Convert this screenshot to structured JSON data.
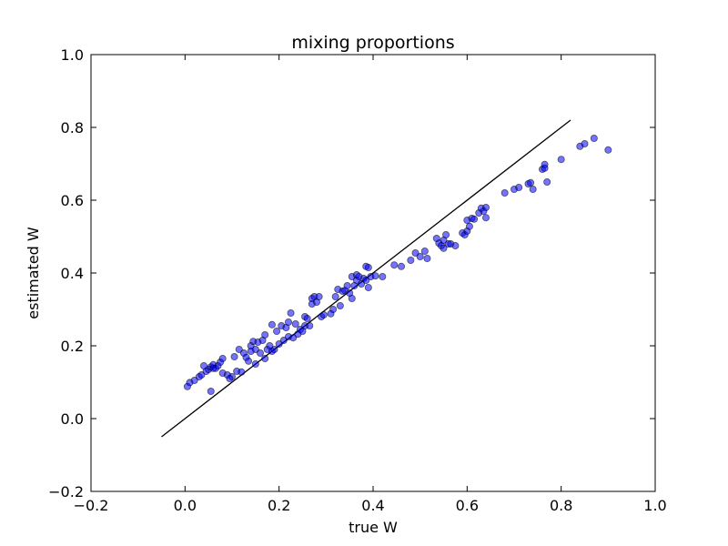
{
  "chart_data": {
    "type": "scatter",
    "title": "mixing proportions",
    "xlabel": "true W",
    "ylabel": "estimated W",
    "xlim": [
      -0.2,
      1.0
    ],
    "ylim": [
      -0.2,
      1.0
    ],
    "xticks": [
      "−0.2",
      "0.0",
      "0.2",
      "0.4",
      "0.6",
      "0.8",
      "1.0"
    ],
    "yticks": [
      "−0.2",
      "0.0",
      "0.2",
      "0.4",
      "0.6",
      "0.8",
      "1.0"
    ],
    "grid": false,
    "colors": {
      "points": "#0000ff",
      "points_alpha": 0.55,
      "edge": "#000000",
      "line": "#000000"
    },
    "reference_line": {
      "x": [
        -0.05,
        0.82
      ],
      "y": [
        -0.05,
        0.82
      ]
    },
    "series": [
      {
        "points": [
          [
            0.005,
            0.088
          ],
          [
            0.01,
            0.099
          ],
          [
            0.02,
            0.105
          ],
          [
            0.03,
            0.115
          ],
          [
            0.035,
            0.12
          ],
          [
            0.04,
            0.145
          ],
          [
            0.045,
            0.13
          ],
          [
            0.05,
            0.135
          ],
          [
            0.055,
            0.142
          ],
          [
            0.06,
            0.148
          ],
          [
            0.065,
            0.138
          ],
          [
            0.07,
            0.145
          ],
          [
            0.075,
            0.155
          ],
          [
            0.08,
            0.165
          ],
          [
            0.055,
            0.075
          ],
          [
            0.06,
            0.138
          ],
          [
            0.08,
            0.125
          ],
          [
            0.09,
            0.12
          ],
          [
            0.1,
            0.115
          ],
          [
            0.095,
            0.11
          ],
          [
            0.105,
            0.17
          ],
          [
            0.11,
            0.13
          ],
          [
            0.115,
            0.19
          ],
          [
            0.12,
            0.128
          ],
          [
            0.125,
            0.18
          ],
          [
            0.13,
            0.168
          ],
          [
            0.135,
            0.158
          ],
          [
            0.14,
            0.185
          ],
          [
            0.14,
            0.2
          ],
          [
            0.145,
            0.212
          ],
          [
            0.15,
            0.15
          ],
          [
            0.15,
            0.19
          ],
          [
            0.155,
            0.21
          ],
          [
            0.16,
            0.18
          ],
          [
            0.165,
            0.215
          ],
          [
            0.17,
            0.165
          ],
          [
            0.17,
            0.23
          ],
          [
            0.175,
            0.19
          ],
          [
            0.18,
            0.2
          ],
          [
            0.185,
            0.185
          ],
          [
            0.185,
            0.258
          ],
          [
            0.19,
            0.19
          ],
          [
            0.195,
            0.24
          ],
          [
            0.2,
            0.205
          ],
          [
            0.205,
            0.255
          ],
          [
            0.21,
            0.215
          ],
          [
            0.215,
            0.25
          ],
          [
            0.22,
            0.225
          ],
          [
            0.22,
            0.265
          ],
          [
            0.225,
            0.29
          ],
          [
            0.23,
            0.222
          ],
          [
            0.235,
            0.26
          ],
          [
            0.24,
            0.232
          ],
          [
            0.245,
            0.245
          ],
          [
            0.25,
            0.24
          ],
          [
            0.255,
            0.255
          ],
          [
            0.255,
            0.28
          ],
          [
            0.26,
            0.275
          ],
          [
            0.265,
            0.255
          ],
          [
            0.27,
            0.315
          ],
          [
            0.27,
            0.33
          ],
          [
            0.275,
            0.335
          ],
          [
            0.28,
            0.32
          ],
          [
            0.285,
            0.335
          ],
          [
            0.29,
            0.28
          ],
          [
            0.295,
            0.285
          ],
          [
            0.31,
            0.288
          ],
          [
            0.315,
            0.3
          ],
          [
            0.32,
            0.335
          ],
          [
            0.325,
            0.355
          ],
          [
            0.33,
            0.31
          ],
          [
            0.335,
            0.35
          ],
          [
            0.34,
            0.352
          ],
          [
            0.345,
            0.365
          ],
          [
            0.35,
            0.345
          ],
          [
            0.355,
            0.33
          ],
          [
            0.355,
            0.39
          ],
          [
            0.36,
            0.365
          ],
          [
            0.365,
            0.38
          ],
          [
            0.365,
            0.395
          ],
          [
            0.37,
            0.39
          ],
          [
            0.375,
            0.37
          ],
          [
            0.38,
            0.385
          ],
          [
            0.385,
            0.38
          ],
          [
            0.385,
            0.418
          ],
          [
            0.39,
            0.36
          ],
          [
            0.39,
            0.415
          ],
          [
            0.395,
            0.39
          ],
          [
            0.405,
            0.392
          ],
          [
            0.42,
            0.39
          ],
          [
            0.445,
            0.422
          ],
          [
            0.46,
            0.418
          ],
          [
            0.48,
            0.435
          ],
          [
            0.49,
            0.455
          ],
          [
            0.5,
            0.445
          ],
          [
            0.51,
            0.46
          ],
          [
            0.515,
            0.44
          ],
          [
            0.535,
            0.495
          ],
          [
            0.54,
            0.482
          ],
          [
            0.545,
            0.475
          ],
          [
            0.55,
            0.49
          ],
          [
            0.55,
            0.468
          ],
          [
            0.555,
            0.505
          ],
          [
            0.56,
            0.48
          ],
          [
            0.565,
            0.48
          ],
          [
            0.575,
            0.475
          ],
          [
            0.59,
            0.51
          ],
          [
            0.595,
            0.505
          ],
          [
            0.6,
            0.515
          ],
          [
            0.6,
            0.545
          ],
          [
            0.605,
            0.528
          ],
          [
            0.61,
            0.55
          ],
          [
            0.615,
            0.548
          ],
          [
            0.625,
            0.565
          ],
          [
            0.63,
            0.578
          ],
          [
            0.635,
            0.57
          ],
          [
            0.64,
            0.58
          ],
          [
            0.64,
            0.552
          ],
          [
            0.68,
            0.62
          ],
          [
            0.7,
            0.63
          ],
          [
            0.71,
            0.635
          ],
          [
            0.73,
            0.645
          ],
          [
            0.735,
            0.648
          ],
          [
            0.74,
            0.63
          ],
          [
            0.76,
            0.685
          ],
          [
            0.765,
            0.698
          ],
          [
            0.765,
            0.688
          ],
          [
            0.77,
            0.65
          ],
          [
            0.8,
            0.712
          ],
          [
            0.84,
            0.748
          ],
          [
            0.85,
            0.755
          ],
          [
            0.87,
            0.77
          ],
          [
            0.9,
            0.738
          ]
        ]
      }
    ]
  }
}
